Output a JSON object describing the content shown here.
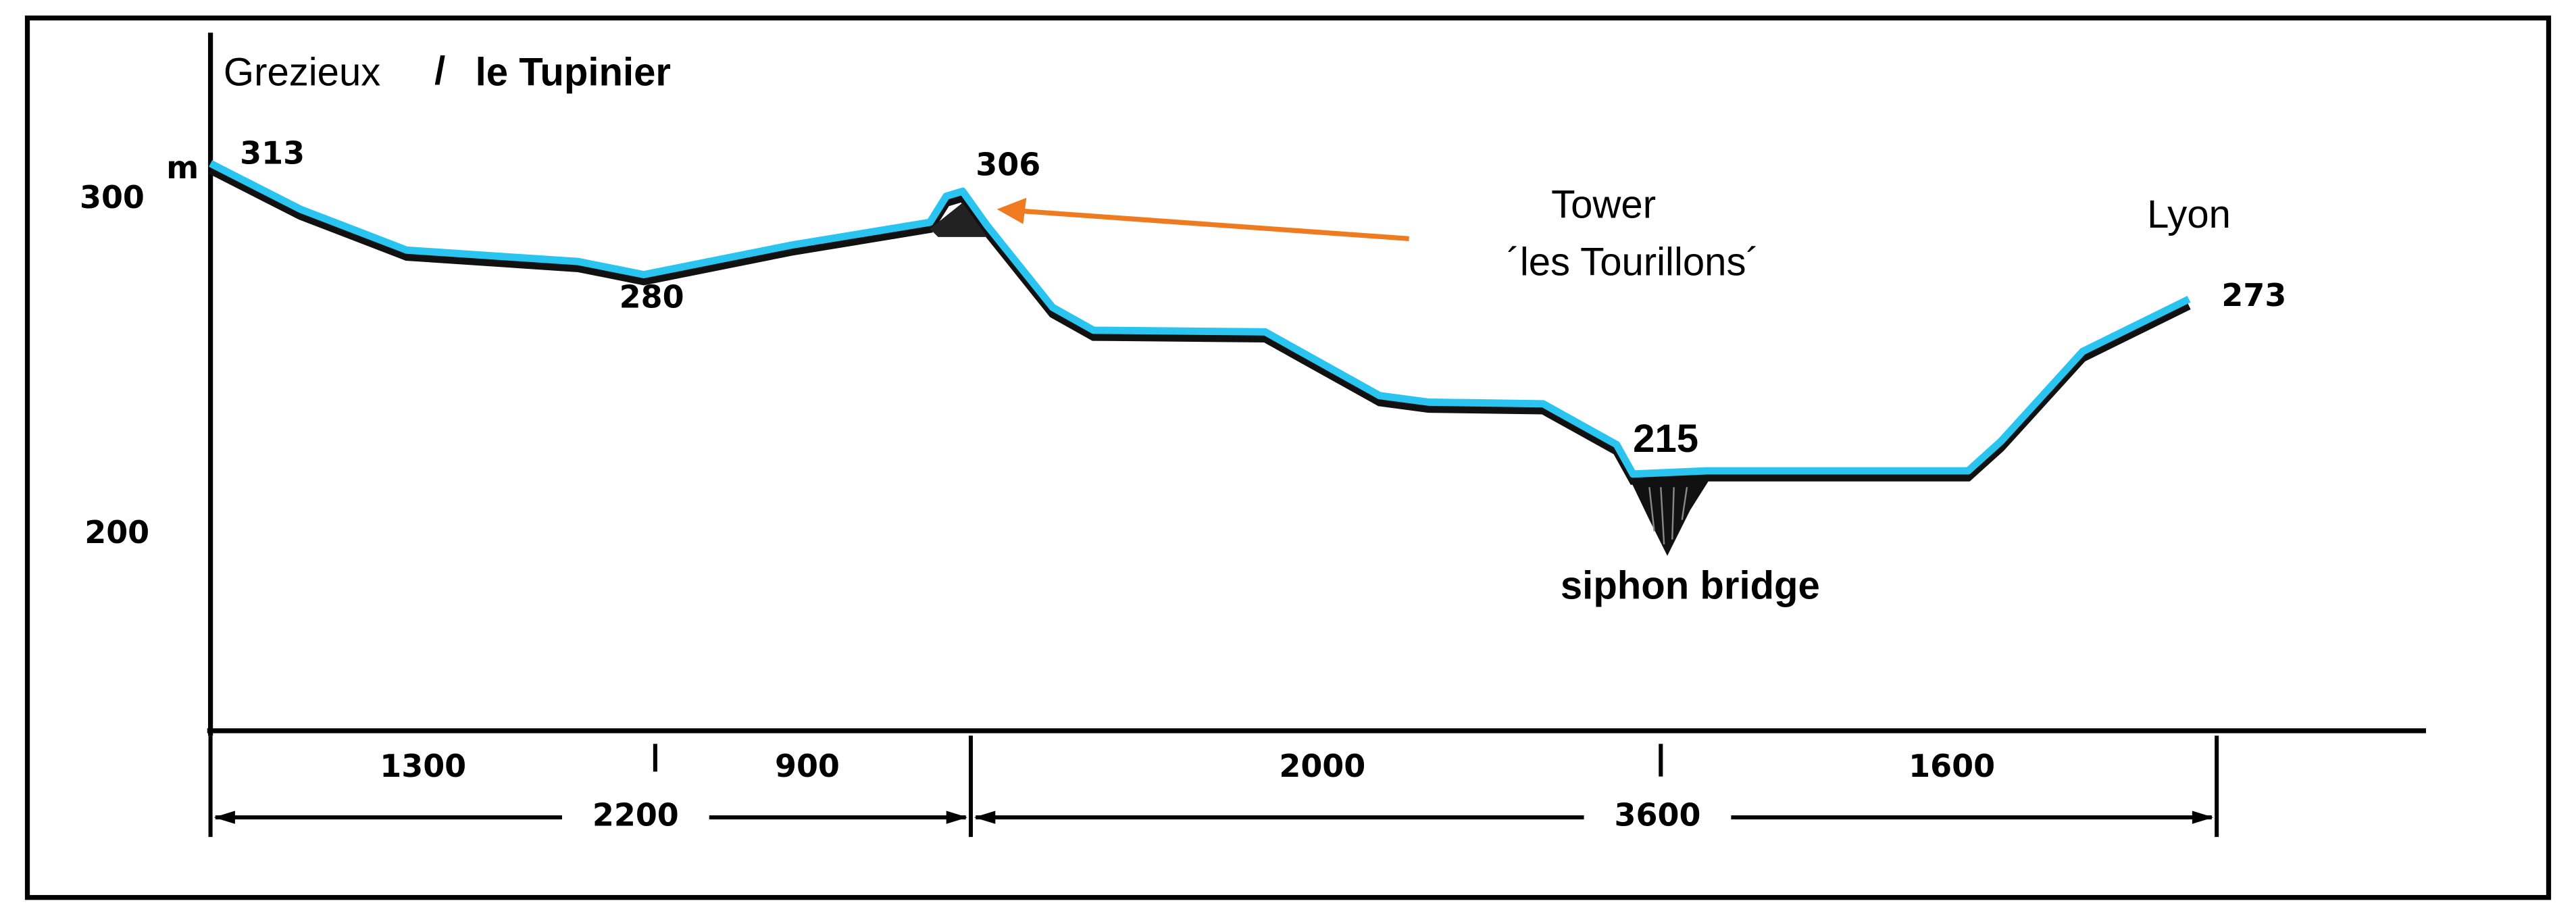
{
  "header": {
    "start": "Grezieux",
    "separator": "/",
    "end_place": "le Tupinier"
  },
  "axis": {
    "unit": "m",
    "labels": [
      "300",
      "200"
    ]
  },
  "elevations": [
    "313",
    "280",
    "306",
    "215",
    "273"
  ],
  "annotations": {
    "tower": "Tower",
    "tower_name": "´les Tourillons´",
    "destination": "Lyon",
    "bridge": "siphon bridge"
  },
  "distances": {
    "segments": [
      "1300",
      "900",
      "2000",
      "1600"
    ],
    "totals": [
      "2200",
      "3600"
    ]
  }
}
